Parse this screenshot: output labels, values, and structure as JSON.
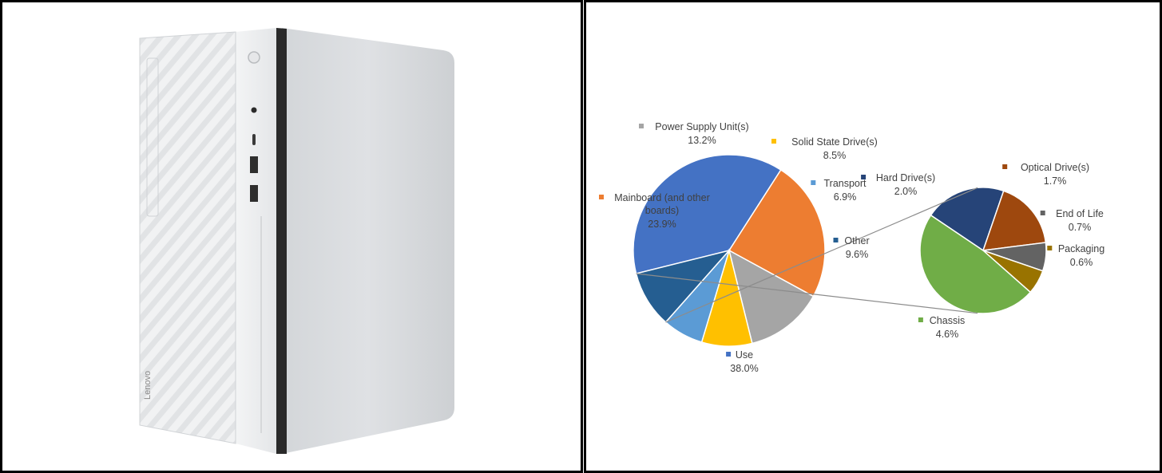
{
  "product": {
    "brand": "Lenovo"
  },
  "chart_data": {
    "type": "pie",
    "subtype": "pie-of-pie",
    "main": [
      {
        "name": "Use",
        "value": 38.0,
        "label": "38.0%",
        "color": "#4472C4"
      },
      {
        "name": "Mainboard (and other boards)",
        "value": 23.9,
        "label": "23.9%",
        "color": "#ED7D31"
      },
      {
        "name": "Power Supply Unit(s)",
        "value": 13.2,
        "label": "13.2%",
        "color": "#A5A5A5"
      },
      {
        "name": "Solid State Drive(s)",
        "value": 8.5,
        "label": "8.5%",
        "color": "#FFC000"
      },
      {
        "name": "Transport",
        "value": 6.9,
        "label": "6.9%",
        "color": "#5B9BD5"
      },
      {
        "name": "Other",
        "value": 9.6,
        "label": "9.6%",
        "color": "#255E91"
      }
    ],
    "secondary": [
      {
        "name": "Hard Drive(s)",
        "value": 2.0,
        "label": "2.0%",
        "color": "#264478"
      },
      {
        "name": "Optical Drive(s)",
        "value": 1.7,
        "label": "1.7%",
        "color": "#9E480E"
      },
      {
        "name": "End of Life",
        "value": 0.7,
        "label": "0.7%",
        "color": "#636363"
      },
      {
        "name": "Packaging",
        "value": 0.6,
        "label": "0.6%",
        "color": "#997300"
      },
      {
        "name": "Chassis",
        "value": 4.6,
        "label": "4.6%",
        "color": "#70AD47"
      }
    ],
    "legend": "none",
    "data_labels": "category name and percentage"
  }
}
